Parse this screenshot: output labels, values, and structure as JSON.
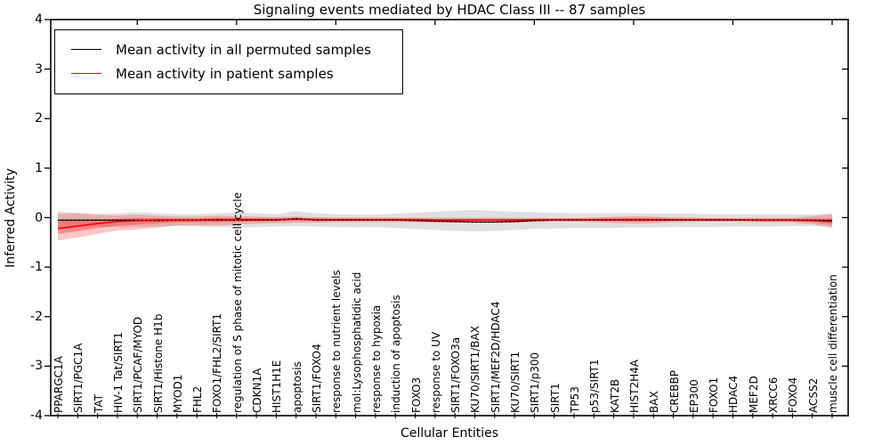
{
  "figure": {
    "title": "Signaling events mediated by HDAC Class III -- 87 samples",
    "xlabel": "Cellular Entities",
    "ylabel": "Inferred Activity"
  },
  "legend": {
    "items": [
      {
        "label": "Mean activity in all permuted samples",
        "color": "#000000"
      },
      {
        "label": "Mean activity in patient samples",
        "color": "#ff0000"
      }
    ]
  },
  "chart_data": {
    "type": "line",
    "title": "Signaling events mediated by HDAC Class III -- 87 samples",
    "xlabel": "Cellular Entities",
    "ylabel": "Inferred Activity",
    "ylim": [
      -4,
      4
    ],
    "ytick_values": [
      4,
      3,
      2,
      1,
      0,
      -1,
      -2,
      -3,
      -4
    ],
    "ytick_labels": [
      "4",
      "3",
      "2",
      "1",
      "0",
      "-1",
      "-2",
      "-3",
      "-4"
    ],
    "grid": false,
    "legend_position": "upper left",
    "categories": [
      "PPARGC1A",
      "SIRT1/PGC1A",
      "TAT",
      "HIV-1 Tat/SIRT1",
      "SIRT1/PCAF/MYOD",
      "SIRT1/Histone H1b",
      "MYOD1",
      "FHL2",
      "FOXO1/FHL2/SIRT1",
      "regulation of S phase of mitotic cell cycle",
      "CDKN1A",
      "HIST1H1E",
      "apoptosis",
      "SIRT1/FOXO4",
      "response to nutrient levels",
      "mol:Lysophosphatidic acid",
      "response to hypoxia",
      "induction of apoptosis",
      "FOXO3",
      "response to UV",
      "SIRT1/FOXO3a",
      "KU70/SIRT1/BAX",
      "SIRT1/MEF2D/HDAC4",
      "KU70/SIRT1",
      "SIRT1/p300",
      "SIRT1",
      "TP53",
      "p53/SIRT1",
      "KAT2B",
      "HIST2H4A",
      "BAX",
      "CREBBP",
      "EP300",
      "FOXO1",
      "HDAC4",
      "MEF2D",
      "XRCC6",
      "FOXO4",
      "ACSS2",
      "muscle cell differentiation"
    ],
    "series": [
      {
        "name": "Mean activity in all permuted samples",
        "color": "#000000",
        "linestyle": "dotted",
        "values": [
          -0.05,
          -0.05,
          -0.05,
          -0.05,
          -0.05,
          -0.06,
          -0.05,
          -0.05,
          -0.05,
          -0.05,
          -0.05,
          -0.05,
          -0.02,
          -0.05,
          -0.05,
          -0.05,
          -0.05,
          -0.05,
          -0.06,
          -0.07,
          -0.08,
          -0.09,
          -0.09,
          -0.08,
          -0.06,
          -0.05,
          -0.05,
          -0.05,
          -0.05,
          -0.05,
          -0.05,
          -0.05,
          -0.05,
          -0.05,
          -0.05,
          -0.05,
          -0.05,
          -0.05,
          -0.05,
          -0.06
        ]
      },
      {
        "name": "Mean activity in patient samples",
        "color": "#ff0000",
        "linestyle": "solid",
        "values": [
          -0.22,
          -0.17,
          -0.12,
          -0.08,
          -0.06,
          -0.05,
          -0.05,
          -0.05,
          -0.04,
          -0.04,
          -0.04,
          -0.04,
          -0.03,
          -0.04,
          -0.04,
          -0.04,
          -0.04,
          -0.04,
          -0.04,
          -0.05,
          -0.05,
          -0.05,
          -0.05,
          -0.05,
          -0.04,
          -0.04,
          -0.04,
          -0.04,
          -0.04,
          -0.04,
          -0.04,
          -0.04,
          -0.04,
          -0.04,
          -0.04,
          -0.05,
          -0.05,
          -0.05,
          -0.06,
          -0.08
        ]
      }
    ],
    "bands": [
      {
        "name": "permuted-samples-spread",
        "color": "#000000",
        "opacity": 0.12,
        "upper": [
          0.07,
          0.09,
          0.07,
          0.09,
          0.11,
          0.09,
          0.07,
          0.07,
          0.09,
          0.11,
          0.09,
          0.07,
          0.13,
          0.09,
          0.07,
          0.06,
          0.06,
          0.08,
          0.1,
          0.12,
          0.14,
          0.15,
          0.14,
          0.12,
          0.11,
          0.1,
          0.09,
          0.09,
          0.09,
          0.09,
          0.08,
          0.08,
          0.08,
          0.07,
          0.07,
          0.07,
          0.07,
          0.07,
          0.06,
          0.08
        ],
        "lower": [
          -0.18,
          -0.2,
          -0.18,
          -0.2,
          -0.19,
          -0.18,
          -0.17,
          -0.18,
          -0.19,
          -0.2,
          -0.19,
          -0.18,
          -0.17,
          -0.18,
          -0.19,
          -0.2,
          -0.19,
          -0.21,
          -0.23,
          -0.25,
          -0.27,
          -0.28,
          -0.27,
          -0.25,
          -0.23,
          -0.22,
          -0.21,
          -0.21,
          -0.21,
          -0.2,
          -0.2,
          -0.19,
          -0.19,
          -0.19,
          -0.18,
          -0.18,
          -0.18,
          -0.17,
          -0.17,
          -0.18
        ]
      },
      {
        "name": "patient-samples-spread",
        "color": "#ff0000",
        "opacity": 0.22,
        "upper": [
          0.12,
          0.09,
          0.06,
          0.04,
          0.06,
          0.04,
          0.02,
          0.02,
          0.04,
          0.03,
          0.02,
          0.01,
          0.02,
          0.01,
          0.0,
          0.0,
          0.0,
          0.0,
          0.0,
          0.0,
          0.0,
          0.0,
          0.0,
          0.0,
          -0.01,
          -0.01,
          -0.01,
          0.0,
          0.02,
          0.03,
          0.02,
          0.0,
          0.0,
          -0.01,
          -0.01,
          0.0,
          0.0,
          0.0,
          0.03,
          0.07
        ],
        "lower": [
          -0.46,
          -0.4,
          -0.33,
          -0.26,
          -0.24,
          -0.2,
          -0.16,
          -0.15,
          -0.16,
          -0.14,
          -0.12,
          -0.11,
          -0.1,
          -0.1,
          -0.09,
          -0.09,
          -0.09,
          -0.09,
          -0.09,
          -0.1,
          -0.1,
          -0.1,
          -0.1,
          -0.1,
          -0.09,
          -0.08,
          -0.08,
          -0.09,
          -0.11,
          -0.12,
          -0.11,
          -0.09,
          -0.08,
          -0.08,
          -0.08,
          -0.09,
          -0.1,
          -0.1,
          -0.13,
          -0.21
        ]
      }
    ]
  }
}
